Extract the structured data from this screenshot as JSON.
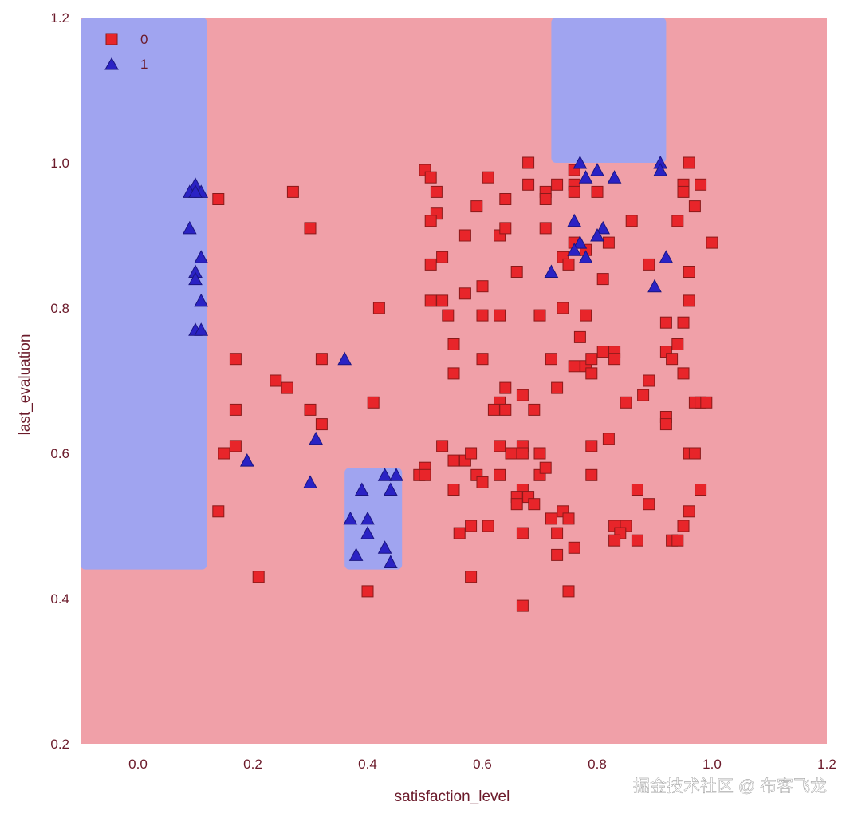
{
  "chart_data": {
    "type": "scatter",
    "title": "",
    "xlabel": "satisfaction_level",
    "ylabel": "last_evaluation",
    "xlim": [
      -0.1,
      1.2
    ],
    "ylim": [
      0.2,
      1.2
    ],
    "xticks": [
      "0.0",
      "0.2",
      "0.4",
      "0.6",
      "0.8",
      "1.0",
      "1.2"
    ],
    "yticks": [
      "0.2",
      "0.4",
      "0.6",
      "0.8",
      "1.0",
      "1.2"
    ],
    "grid": false,
    "legend_position": "top-left",
    "colors": {
      "background_class_0": "#f0a0a8",
      "background_class_1": "#a0a4f0",
      "class_0": "#e8252a",
      "class_1": "#2a22c4",
      "text": "#6b1a2a"
    },
    "decision_regions": [
      {
        "class": "1",
        "x": [
          -0.1,
          0.12
        ],
        "y": [
          0.44,
          1.2
        ]
      },
      {
        "class": "1",
        "x": [
          0.72,
          0.92
        ],
        "y": [
          1.0,
          1.2
        ]
      },
      {
        "class": "1",
        "x": [
          0.36,
          0.46
        ],
        "y": [
          0.44,
          0.58
        ]
      }
    ],
    "series": [
      {
        "name": "0",
        "marker": "square",
        "points": [
          [
            0.14,
            0.95
          ],
          [
            0.27,
            0.96
          ],
          [
            0.3,
            0.91
          ],
          [
            0.17,
            0.73
          ],
          [
            0.32,
            0.73
          ],
          [
            0.24,
            0.7
          ],
          [
            0.26,
            0.69
          ],
          [
            0.17,
            0.66
          ],
          [
            0.3,
            0.66
          ],
          [
            0.32,
            0.64
          ],
          [
            0.15,
            0.6
          ],
          [
            0.17,
            0.61
          ],
          [
            0.14,
            0.52
          ],
          [
            0.21,
            0.43
          ],
          [
            0.42,
            0.8
          ],
          [
            0.41,
            0.67
          ],
          [
            0.4,
            0.41
          ],
          [
            0.5,
            0.99
          ],
          [
            0.51,
            0.98
          ],
          [
            0.52,
            0.96
          ],
          [
            0.52,
            0.93
          ],
          [
            0.51,
            0.92
          ],
          [
            0.57,
            0.9
          ],
          [
            0.53,
            0.87
          ],
          [
            0.51,
            0.86
          ],
          [
            0.51,
            0.81
          ],
          [
            0.53,
            0.81
          ],
          [
            0.54,
            0.79
          ],
          [
            0.57,
            0.82
          ],
          [
            0.59,
            0.94
          ],
          [
            0.61,
            0.98
          ],
          [
            0.64,
            0.95
          ],
          [
            0.63,
            0.9
          ],
          [
            0.64,
            0.91
          ],
          [
            0.6,
            0.83
          ],
          [
            0.6,
            0.79
          ],
          [
            0.63,
            0.79
          ],
          [
            0.66,
            0.85
          ],
          [
            0.68,
            1.0
          ],
          [
            0.68,
            0.97
          ],
          [
            0.71,
            0.96
          ],
          [
            0.71,
            0.95
          ],
          [
            0.73,
            0.97
          ],
          [
            0.71,
            0.91
          ],
          [
            0.76,
            0.99
          ],
          [
            0.76,
            0.97
          ],
          [
            0.76,
            0.96
          ],
          [
            0.8,
            0.96
          ],
          [
            0.86,
            0.92
          ],
          [
            0.74,
            0.87
          ],
          [
            0.75,
            0.86
          ],
          [
            0.78,
            0.88
          ],
          [
            0.76,
            0.89
          ],
          [
            0.82,
            0.89
          ],
          [
            0.81,
            0.84
          ],
          [
            0.7,
            0.79
          ],
          [
            0.74,
            0.8
          ],
          [
            0.78,
            0.79
          ],
          [
            0.96,
            1.0
          ],
          [
            0.95,
            0.97
          ],
          [
            0.95,
            0.96
          ],
          [
            0.98,
            0.97
          ],
          [
            0.97,
            0.94
          ],
          [
            0.94,
            0.92
          ],
          [
            0.89,
            0.86
          ],
          [
            0.96,
            0.85
          ],
          [
            0.96,
            0.81
          ],
          [
            0.92,
            0.78
          ],
          [
            0.95,
            0.78
          ],
          [
            1.0,
            0.89
          ],
          [
            0.55,
            0.75
          ],
          [
            0.55,
            0.71
          ],
          [
            0.6,
            0.73
          ],
          [
            0.64,
            0.69
          ],
          [
            0.63,
            0.67
          ],
          [
            0.62,
            0.66
          ],
          [
            0.64,
            0.66
          ],
          [
            0.67,
            0.68
          ],
          [
            0.69,
            0.66
          ],
          [
            0.72,
            0.73
          ],
          [
            0.73,
            0.69
          ],
          [
            0.77,
            0.76
          ],
          [
            0.76,
            0.72
          ],
          [
            0.78,
            0.72
          ],
          [
            0.79,
            0.73
          ],
          [
            0.79,
            0.71
          ],
          [
            0.81,
            0.74
          ],
          [
            0.83,
            0.74
          ],
          [
            0.83,
            0.73
          ],
          [
            0.85,
            0.67
          ],
          [
            0.88,
            0.68
          ],
          [
            0.89,
            0.7
          ],
          [
            0.92,
            0.74
          ],
          [
            0.94,
            0.75
          ],
          [
            0.93,
            0.73
          ],
          [
            0.95,
            0.71
          ],
          [
            0.92,
            0.65
          ],
          [
            0.92,
            0.64
          ],
          [
            0.97,
            0.67
          ],
          [
            0.98,
            0.67
          ],
          [
            0.99,
            0.67
          ],
          [
            0.82,
            0.62
          ],
          [
            0.49,
            0.57
          ],
          [
            0.5,
            0.58
          ],
          [
            0.5,
            0.57
          ],
          [
            0.53,
            0.61
          ],
          [
            0.55,
            0.59
          ],
          [
            0.57,
            0.59
          ],
          [
            0.58,
            0.6
          ],
          [
            0.59,
            0.57
          ],
          [
            0.6,
            0.56
          ],
          [
            0.55,
            0.55
          ],
          [
            0.63,
            0.61
          ],
          [
            0.63,
            0.57
          ],
          [
            0.65,
            0.6
          ],
          [
            0.67,
            0.61
          ],
          [
            0.67,
            0.6
          ],
          [
            0.7,
            0.6
          ],
          [
            0.7,
            0.57
          ],
          [
            0.71,
            0.58
          ],
          [
            0.79,
            0.61
          ],
          [
            0.79,
            0.57
          ],
          [
            0.67,
            0.55
          ],
          [
            0.66,
            0.54
          ],
          [
            0.68,
            0.54
          ],
          [
            0.66,
            0.53
          ],
          [
            0.69,
            0.53
          ],
          [
            0.58,
            0.5
          ],
          [
            0.56,
            0.49
          ],
          [
            0.61,
            0.5
          ],
          [
            0.67,
            0.49
          ],
          [
            0.72,
            0.51
          ],
          [
            0.74,
            0.52
          ],
          [
            0.75,
            0.51
          ],
          [
            0.73,
            0.49
          ],
          [
            0.73,
            0.46
          ],
          [
            0.76,
            0.47
          ],
          [
            0.87,
            0.55
          ],
          [
            0.89,
            0.53
          ],
          [
            0.83,
            0.5
          ],
          [
            0.85,
            0.5
          ],
          [
            0.84,
            0.49
          ],
          [
            0.83,
            0.48
          ],
          [
            0.87,
            0.48
          ],
          [
            0.93,
            0.48
          ],
          [
            0.94,
            0.48
          ],
          [
            0.95,
            0.5
          ],
          [
            0.96,
            0.52
          ],
          [
            0.98,
            0.55
          ],
          [
            0.96,
            0.6
          ],
          [
            0.97,
            0.6
          ],
          [
            0.58,
            0.43
          ],
          [
            0.75,
            0.41
          ],
          [
            0.67,
            0.39
          ]
        ]
      },
      {
        "name": "1",
        "marker": "triangle",
        "points": [
          [
            0.1,
            0.97
          ],
          [
            0.09,
            0.96
          ],
          [
            0.11,
            0.96
          ],
          [
            0.1,
            0.96
          ],
          [
            0.09,
            0.91
          ],
          [
            0.11,
            0.87
          ],
          [
            0.1,
            0.85
          ],
          [
            0.1,
            0.84
          ],
          [
            0.11,
            0.81
          ],
          [
            0.1,
            0.77
          ],
          [
            0.11,
            0.77
          ],
          [
            0.36,
            0.73
          ],
          [
            0.31,
            0.62
          ],
          [
            0.19,
            0.59
          ],
          [
            0.3,
            0.56
          ],
          [
            0.39,
            0.55
          ],
          [
            0.43,
            0.57
          ],
          [
            0.45,
            0.57
          ],
          [
            0.44,
            0.55
          ],
          [
            0.37,
            0.51
          ],
          [
            0.4,
            0.51
          ],
          [
            0.4,
            0.49
          ],
          [
            0.38,
            0.46
          ],
          [
            0.43,
            0.47
          ],
          [
            0.44,
            0.45
          ],
          [
            0.77,
            1.0
          ],
          [
            0.78,
            0.98
          ],
          [
            0.8,
            0.99
          ],
          [
            0.83,
            0.98
          ],
          [
            0.91,
            1.0
          ],
          [
            0.91,
            0.99
          ],
          [
            0.76,
            0.92
          ],
          [
            0.77,
            0.89
          ],
          [
            0.76,
            0.88
          ],
          [
            0.81,
            0.91
          ],
          [
            0.8,
            0.9
          ],
          [
            0.78,
            0.87
          ],
          [
            0.72,
            0.85
          ],
          [
            0.92,
            0.87
          ],
          [
            0.9,
            0.83
          ]
        ]
      }
    ]
  },
  "watermark": "掘金技术社区 @ 布客飞龙"
}
